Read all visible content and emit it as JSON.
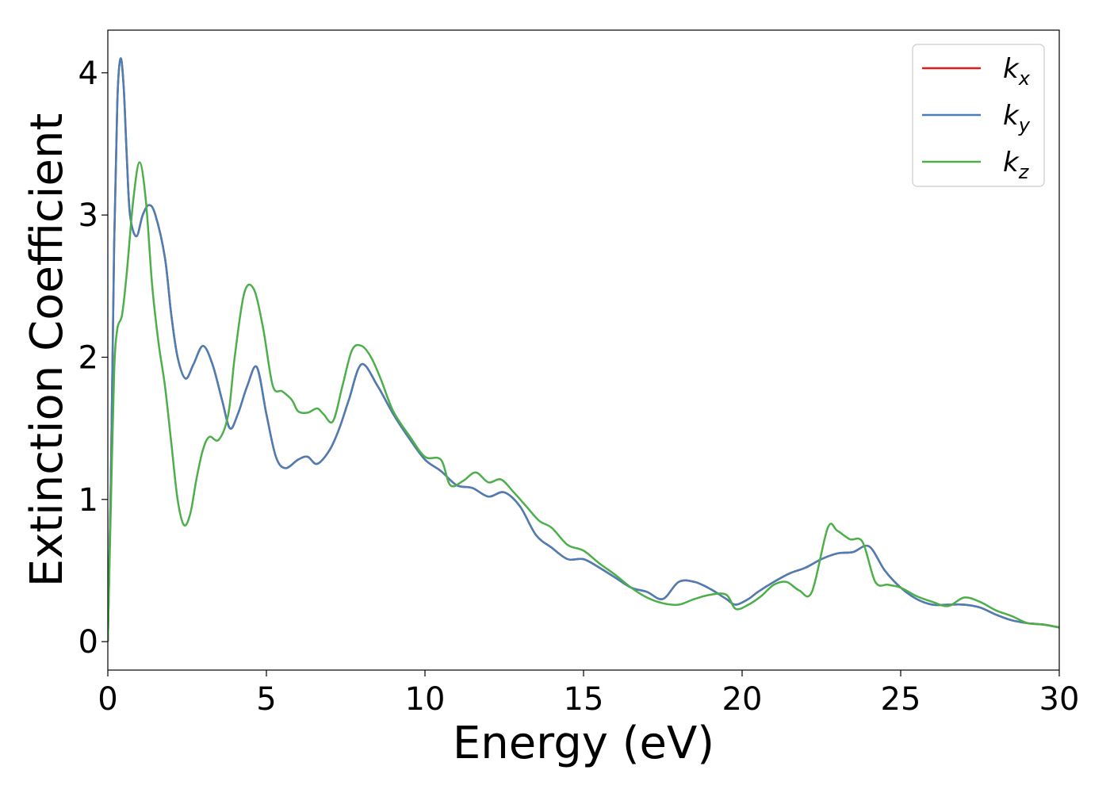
{
  "chart_data": {
    "type": "line",
    "title": "",
    "xlabel": "Energy (eV)",
    "ylabel": "Extinction Coefficient",
    "xlim": [
      0,
      30
    ],
    "ylim": [
      -0.2,
      4.3
    ],
    "xticks": [
      0,
      5,
      10,
      15,
      20,
      25,
      30
    ],
    "yticks": [
      0,
      1,
      2,
      3,
      4
    ],
    "grid": false,
    "legend_position": "top-right",
    "series": [
      {
        "name": "kx",
        "name_base": "k",
        "name_sub": "x",
        "color": "#e41a1c",
        "x": [
          0,
          0.1,
          0.2,
          0.3,
          0.4,
          0.5,
          0.6,
          0.7,
          0.9,
          1.1,
          1.3,
          1.5,
          1.8,
          2.0,
          2.2,
          2.45,
          2.7,
          3.0,
          3.3,
          3.6,
          3.85,
          4.1,
          4.4,
          4.7,
          5.0,
          5.3,
          5.6,
          6.0,
          6.3,
          6.6,
          7.0,
          7.3,
          7.6,
          8.0,
          8.5,
          9.0,
          9.5,
          10.0,
          10.5,
          11.0,
          11.5,
          12.0,
          12.5,
          13.0,
          13.5,
          14.0,
          14.5,
          15.0,
          15.5,
          16.0,
          16.5,
          17.0,
          17.5,
          18.0,
          18.5,
          19.0,
          19.5,
          19.8,
          20.2,
          20.5,
          21.0,
          21.5,
          22.0,
          22.5,
          23.0,
          23.5,
          24.0,
          24.5,
          25.0,
          25.5,
          26.0,
          26.5,
          27.0,
          27.5,
          28.0,
          28.5,
          29.0,
          29.5,
          30.0
        ],
        "y": [
          0.0,
          1.2,
          2.8,
          3.8,
          4.1,
          3.9,
          3.4,
          3.0,
          2.85,
          3.0,
          3.07,
          3.0,
          2.7,
          2.3,
          2.0,
          1.85,
          1.95,
          2.08,
          1.95,
          1.7,
          1.5,
          1.6,
          1.8,
          1.93,
          1.6,
          1.3,
          1.22,
          1.28,
          1.3,
          1.25,
          1.35,
          1.5,
          1.7,
          1.95,
          1.8,
          1.6,
          1.43,
          1.28,
          1.2,
          1.1,
          1.08,
          1.02,
          1.05,
          0.95,
          0.75,
          0.66,
          0.58,
          0.58,
          0.52,
          0.45,
          0.38,
          0.35,
          0.3,
          0.42,
          0.42,
          0.37,
          0.3,
          0.26,
          0.3,
          0.35,
          0.42,
          0.48,
          0.52,
          0.58,
          0.62,
          0.63,
          0.67,
          0.5,
          0.38,
          0.3,
          0.26,
          0.26,
          0.26,
          0.24,
          0.19,
          0.15,
          0.13,
          0.12,
          0.1
        ]
      },
      {
        "name": "ky",
        "name_base": "k",
        "name_sub": "y",
        "color": "#4a7fb5",
        "x": [
          0,
          0.1,
          0.2,
          0.3,
          0.4,
          0.5,
          0.6,
          0.7,
          0.9,
          1.1,
          1.3,
          1.5,
          1.8,
          2.0,
          2.2,
          2.45,
          2.7,
          3.0,
          3.3,
          3.6,
          3.85,
          4.1,
          4.4,
          4.7,
          5.0,
          5.3,
          5.6,
          6.0,
          6.3,
          6.6,
          7.0,
          7.3,
          7.6,
          8.0,
          8.5,
          9.0,
          9.5,
          10.0,
          10.5,
          11.0,
          11.5,
          12.0,
          12.5,
          13.0,
          13.5,
          14.0,
          14.5,
          15.0,
          15.5,
          16.0,
          16.5,
          17.0,
          17.5,
          18.0,
          18.5,
          19.0,
          19.5,
          19.8,
          20.2,
          20.5,
          21.0,
          21.5,
          22.0,
          22.5,
          23.0,
          23.5,
          24.0,
          24.5,
          25.0,
          25.5,
          26.0,
          26.5,
          27.0,
          27.5,
          28.0,
          28.5,
          29.0,
          29.5,
          30.0
        ],
        "y": [
          0.0,
          1.2,
          2.8,
          3.8,
          4.1,
          3.9,
          3.4,
          3.0,
          2.85,
          3.0,
          3.07,
          3.0,
          2.7,
          2.3,
          2.0,
          1.85,
          1.95,
          2.08,
          1.95,
          1.7,
          1.5,
          1.6,
          1.8,
          1.93,
          1.6,
          1.3,
          1.22,
          1.28,
          1.3,
          1.25,
          1.35,
          1.5,
          1.7,
          1.95,
          1.8,
          1.6,
          1.43,
          1.28,
          1.2,
          1.1,
          1.08,
          1.02,
          1.05,
          0.95,
          0.75,
          0.66,
          0.58,
          0.58,
          0.52,
          0.45,
          0.38,
          0.35,
          0.3,
          0.42,
          0.42,
          0.37,
          0.3,
          0.26,
          0.3,
          0.35,
          0.42,
          0.48,
          0.52,
          0.58,
          0.62,
          0.63,
          0.67,
          0.5,
          0.38,
          0.3,
          0.26,
          0.26,
          0.26,
          0.24,
          0.19,
          0.15,
          0.13,
          0.12,
          0.1
        ]
      },
      {
        "name": "kz",
        "name_base": "k",
        "name_sub": "z",
        "color": "#4daf4a",
        "x": [
          0,
          0.1,
          0.2,
          0.3,
          0.45,
          0.6,
          0.8,
          1.0,
          1.2,
          1.4,
          1.6,
          1.8,
          2.0,
          2.2,
          2.4,
          2.6,
          2.8,
          3.0,
          3.2,
          3.5,
          3.8,
          4.0,
          4.3,
          4.6,
          4.9,
          5.2,
          5.5,
          5.8,
          6.0,
          6.3,
          6.6,
          6.8,
          7.1,
          7.4,
          7.7,
          8.0,
          8.3,
          8.6,
          9.0,
          9.5,
          10.0,
          10.5,
          10.8,
          11.2,
          11.6,
          12.0,
          12.4,
          12.8,
          13.2,
          13.6,
          14.0,
          14.5,
          15.0,
          15.5,
          16.0,
          16.5,
          17.0,
          17.5,
          18.0,
          18.5,
          19.0,
          19.5,
          19.8,
          20.2,
          20.6,
          21.0,
          21.4,
          21.8,
          22.2,
          22.7,
          23.0,
          23.4,
          23.8,
          24.2,
          24.6,
          25.0,
          25.5,
          26.0,
          26.5,
          27.0,
          27.5,
          28.0,
          28.5,
          29.0,
          29.5,
          30.0
        ],
        "y": [
          0.0,
          1.0,
          1.9,
          2.2,
          2.3,
          2.6,
          3.1,
          3.37,
          3.1,
          2.5,
          2.1,
          1.8,
          1.4,
          1.0,
          0.82,
          0.9,
          1.15,
          1.35,
          1.44,
          1.42,
          1.6,
          2.0,
          2.45,
          2.48,
          2.2,
          1.8,
          1.76,
          1.7,
          1.62,
          1.61,
          1.64,
          1.6,
          1.55,
          1.8,
          2.05,
          2.08,
          2.0,
          1.85,
          1.62,
          1.45,
          1.3,
          1.28,
          1.1,
          1.13,
          1.19,
          1.12,
          1.14,
          1.05,
          0.95,
          0.85,
          0.8,
          0.68,
          0.64,
          0.55,
          0.47,
          0.38,
          0.31,
          0.27,
          0.26,
          0.3,
          0.33,
          0.33,
          0.23,
          0.26,
          0.32,
          0.4,
          0.42,
          0.36,
          0.35,
          0.8,
          0.78,
          0.72,
          0.7,
          0.42,
          0.4,
          0.38,
          0.32,
          0.28,
          0.25,
          0.31,
          0.28,
          0.22,
          0.18,
          0.13,
          0.12,
          0.1
        ]
      }
    ]
  }
}
